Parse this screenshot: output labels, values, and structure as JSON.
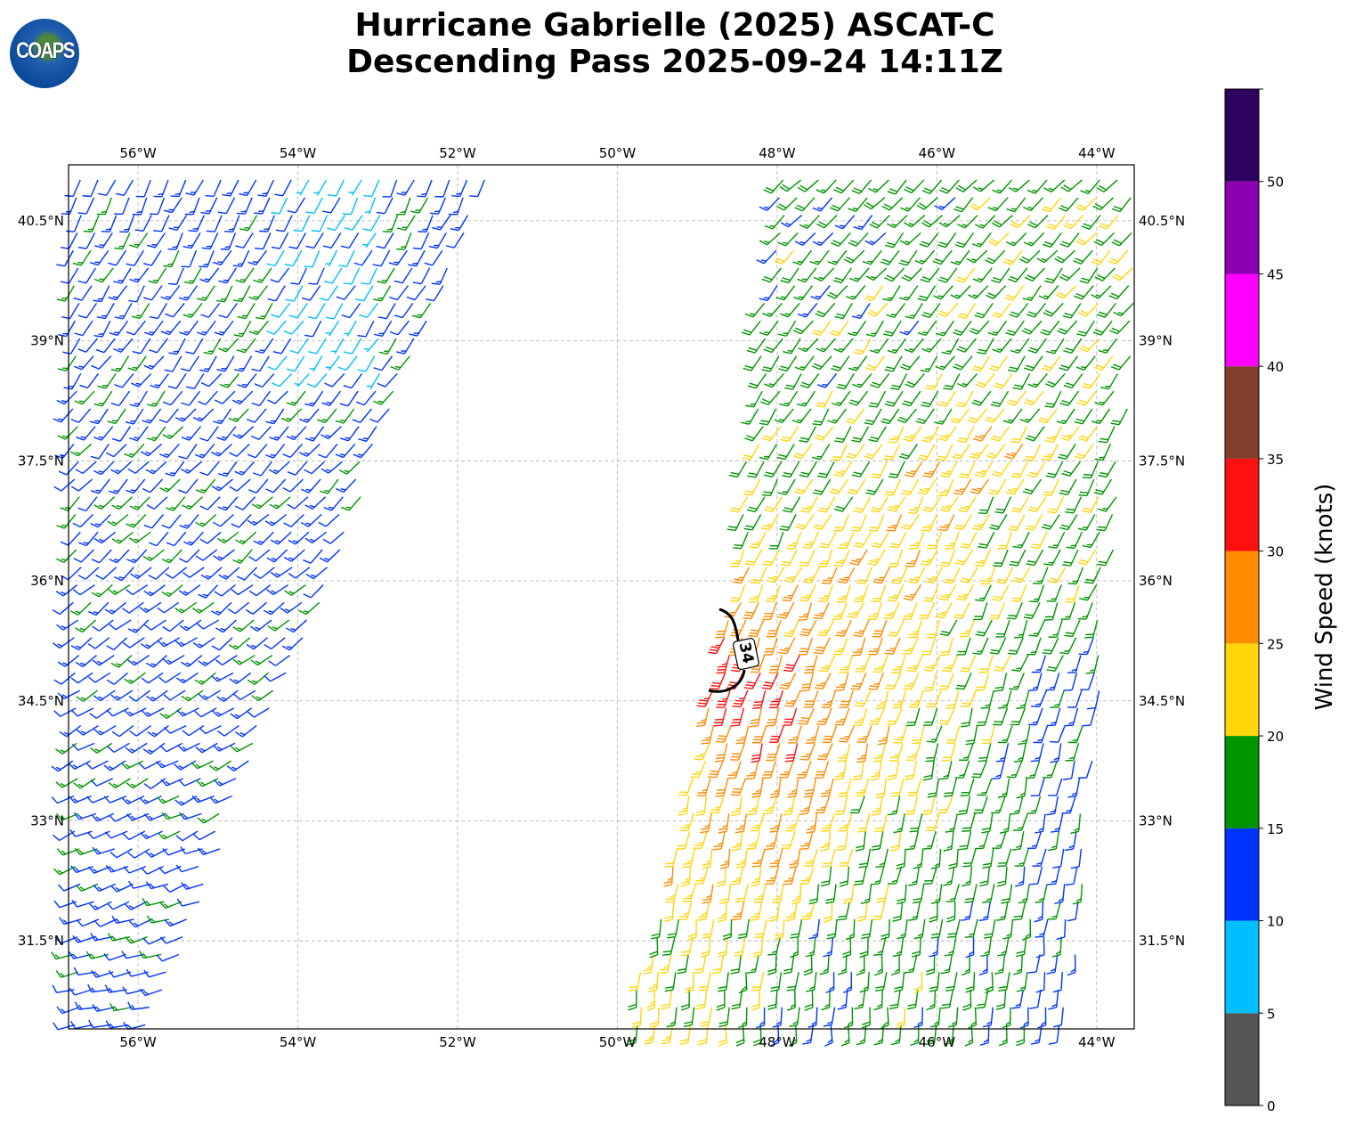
{
  "title": {
    "line1": "Hurricane Gabrielle (2025) ASCAT-C",
    "line2": "Descending Pass 2025-09-24 14:11Z"
  },
  "logo": {
    "text": "COAPS"
  },
  "map": {
    "extent": {
      "lon": [
        -56.87,
        -43.53
      ],
      "lat": [
        30.4,
        41.2
      ]
    },
    "lon_ticks": [
      {
        "value": -56,
        "label": "56°W"
      },
      {
        "value": -54,
        "label": "54°W"
      },
      {
        "value": -52,
        "label": "52°W"
      },
      {
        "value": -50,
        "label": "50°W"
      },
      {
        "value": -48,
        "label": "48°W"
      },
      {
        "value": -46,
        "label": "46°W"
      },
      {
        "value": -44,
        "label": "44°W"
      }
    ],
    "lat_ticks": [
      {
        "value": 40.5,
        "label": "40.5°N"
      },
      {
        "value": 39,
        "label": "39°N"
      },
      {
        "value": 37.5,
        "label": "37.5°N"
      },
      {
        "value": 36,
        "label": "36°N"
      },
      {
        "value": 34.5,
        "label": "34.5°N"
      },
      {
        "value": 33,
        "label": "33°N"
      },
      {
        "value": 31.5,
        "label": "31.5°N"
      }
    ],
    "swaths": [
      {
        "name": "west",
        "polygon": [
          [
            -56.87,
            41.2
          ],
          [
            -51.55,
            41.2
          ],
          [
            -55.85,
            30.4
          ],
          [
            -56.87,
            30.4
          ]
        ],
        "base_speed": 13,
        "direction_deg": 225
      },
      {
        "name": "east",
        "polygon": [
          [
            -48.0,
            41.2
          ],
          [
            -43.53,
            41.2
          ],
          [
            -43.53,
            39.0
          ],
          [
            -44.35,
            30.4
          ],
          [
            -49.9,
            30.4
          ],
          [
            -48.6,
            35.6
          ],
          [
            -48.15,
            39.8
          ]
        ],
        "base_speed": 17,
        "direction_deg": 205
      }
    ],
    "storm_center": {
      "lon": -48.6,
      "lat": 35.0
    },
    "contour": {
      "level": 34,
      "label": "34"
    }
  },
  "colorbar": {
    "label": "Wind Speed (knots)",
    "range": [
      0,
      55
    ],
    "bins": [
      {
        "from": 0,
        "to": 5,
        "color": "#555555"
      },
      {
        "from": 5,
        "to": 10,
        "color": "#00bfff"
      },
      {
        "from": 10,
        "to": 15,
        "color": "#0033ff"
      },
      {
        "from": 15,
        "to": 20,
        "color": "#009400"
      },
      {
        "from": 20,
        "to": 25,
        "color": "#ffd60a"
      },
      {
        "from": 25,
        "to": 30,
        "color": "#ff8c00"
      },
      {
        "from": 30,
        "to": 35,
        "color": "#ff1010"
      },
      {
        "from": 35,
        "to": 40,
        "color": "#7f3f2a"
      },
      {
        "from": 40,
        "to": 45,
        "color": "#ff00ff"
      },
      {
        "from": 45,
        "to": 50,
        "color": "#8b00b0"
      },
      {
        "from": 50,
        "to": 55,
        "color": "#2e005f"
      }
    ],
    "ticks": [
      "0",
      "5",
      "10",
      "15",
      "20",
      "25",
      "30",
      "35",
      "40",
      "45",
      "50"
    ]
  }
}
